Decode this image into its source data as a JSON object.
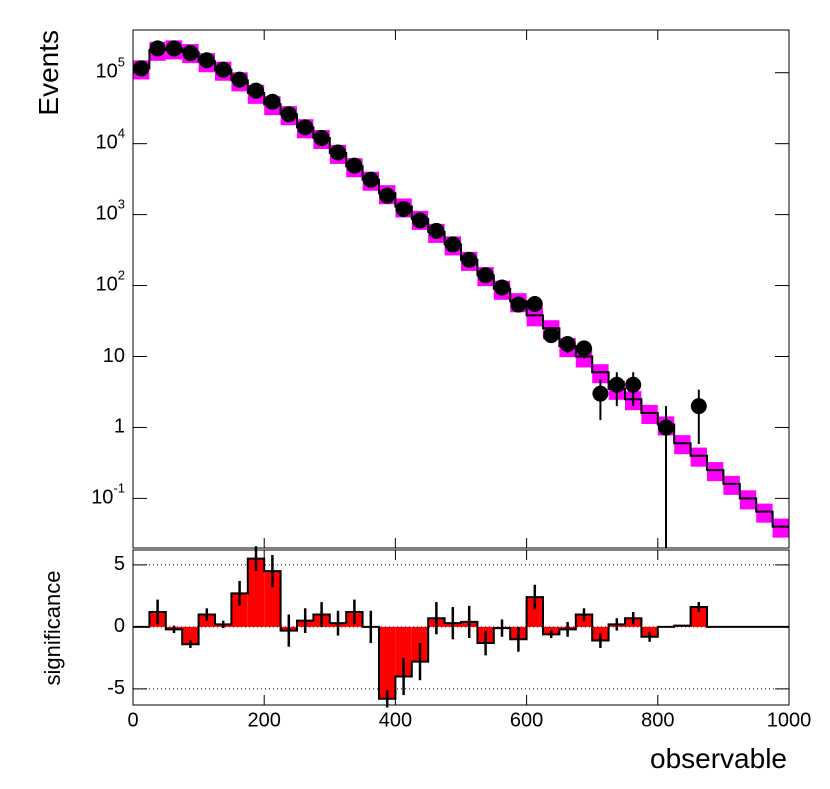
{
  "chart_data": [
    {
      "type": "hist-log",
      "y_label": "Events",
      "bins": [
        0,
        25,
        50,
        75,
        100,
        125,
        150,
        175,
        200,
        225,
        250,
        275,
        300,
        325,
        350,
        375,
        400,
        425,
        450,
        475,
        500,
        525,
        550,
        575,
        600,
        625,
        650,
        675,
        700,
        725,
        750,
        775,
        800,
        825,
        850,
        875,
        900,
        925,
        950,
        975,
        1000
      ],
      "data": [
        115000,
        220000,
        220000,
        190000,
        150000,
        110000,
        80000,
        56000,
        39000,
        26000,
        17000,
        12000,
        7500,
        4900,
        3100,
        1850,
        1200,
        830,
        590,
        380,
        230,
        140,
        94,
        54,
        55,
        20,
        15,
        13,
        3,
        4,
        4,
        null,
        1,
        null,
        2,
        null,
        null,
        null,
        null,
        null
      ],
      "mc": [
        115000,
        210000,
        220000,
        195000,
        145000,
        110000,
        78000,
        52000,
        36000,
        26000,
        17000,
        12000,
        7400,
        4800,
        3100,
        2000,
        1300,
        870,
        570,
        380,
        230,
        140,
        90,
        60,
        38,
        25,
        14,
        10,
        6,
        3.5,
        2.5,
        1.6,
        1.1,
        0.6,
        0.4,
        0.25,
        0.16,
        0.1,
        0.065,
        0.04
      ],
      "mc_rel_error": 0.3,
      "data_color": "#000000",
      "mc_color": "#000000",
      "band_color": "#ff00ff",
      "log_y": true,
      "xlim": [
        0,
        1000
      ],
      "ylim": [
        0.02,
        400000
      ],
      "yticks": [
        {
          "value": 0.1,
          "label": "10",
          "exponent": "-1"
        },
        1,
        10,
        {
          "value": 100,
          "label": "10",
          "exponent": "2"
        },
        {
          "value": 1000,
          "label": "10",
          "exponent": "3"
        },
        {
          "value": 10000,
          "label": "10",
          "exponent": "4"
        },
        {
          "value": 100000,
          "label": "10",
          "exponent": "5"
        }
      ]
    },
    {
      "type": "sig-bar",
      "y_label": "significance",
      "x_label": "observable",
      "values": [
        0,
        1.2,
        -0.2,
        -1.4,
        1.0,
        0.2,
        2.7,
        5.5,
        4.5,
        -0.3,
        0.5,
        1.0,
        0.3,
        1.2,
        0,
        -5.8,
        -4.0,
        -2.8,
        0.7,
        0.3,
        0.4,
        -1.3,
        -0.1,
        -1.0,
        2.4,
        -0.6,
        -0.2,
        1.0,
        -1.1,
        0.2,
        0.7,
        -0.8,
        0,
        0.1,
        1.6,
        0,
        0,
        0,
        0,
        0
      ],
      "errors": [
        null,
        1,
        0.3,
        0.3,
        0.5,
        0.3,
        1,
        1,
        1.3,
        1.3,
        1,
        1,
        1,
        1,
        1.3,
        0.7,
        1.5,
        1.5,
        1.3,
        1.3,
        1.3,
        1,
        0.7,
        1,
        1,
        0.3,
        0.6,
        0.5,
        0.6,
        0.5,
        0.5,
        0.4,
        null,
        null,
        0.4,
        null,
        null,
        null,
        null,
        null
      ],
      "color": "#ff0000",
      "xlim": [
        0,
        1000
      ],
      "ylim": [
        -6.3,
        6.2
      ],
      "yticks": [
        -5,
        0,
        5
      ],
      "dotted_lines": [
        5,
        -5
      ],
      "xticks": [
        0,
        200,
        400,
        600,
        800,
        1000
      ]
    }
  ]
}
